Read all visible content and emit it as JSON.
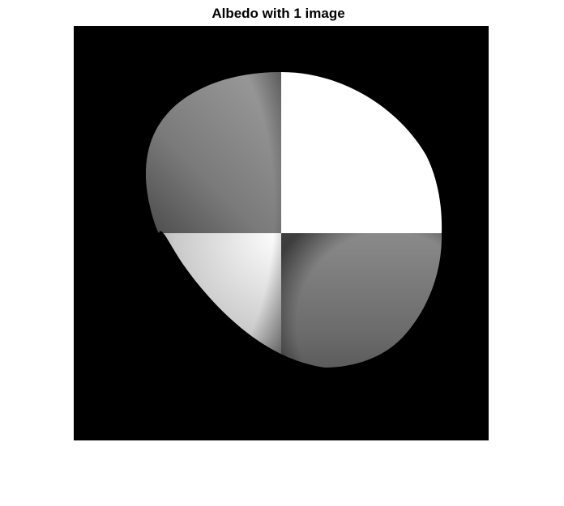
{
  "figure": {
    "title": "Albedo with 1 image",
    "background_color": "#ffffff",
    "image_background_color": "#000000"
  },
  "image": {
    "colormap": "gray",
    "quadrants": [
      {
        "name": "top-left",
        "shading": "gray gradient, darker toward lower-left"
      },
      {
        "name": "top-right",
        "shading": "uniform white"
      },
      {
        "name": "bottom-left",
        "shading": "gradient, brightest toward upper-right"
      },
      {
        "name": "bottom-right",
        "shading": "gray gradient, darker toward bottom"
      }
    ]
  }
}
